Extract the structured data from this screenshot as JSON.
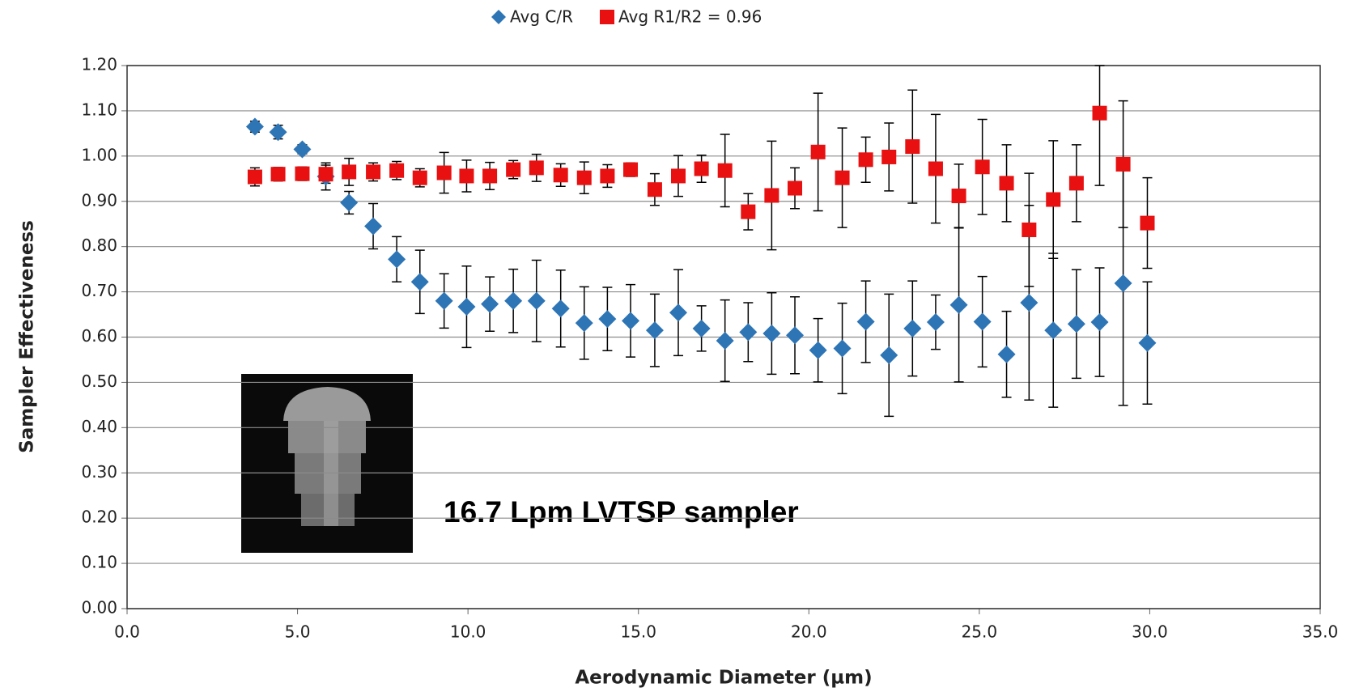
{
  "chart_data": {
    "type": "scatter",
    "x_label": "Aerodynamic Diameter (µm)",
    "y_label": "Sampler Effectiveness",
    "annotation": "16.7 Lpm LVTSP sampler",
    "xlim": [
      0,
      35
    ],
    "ylim": [
      0,
      1.2
    ],
    "xticks": [
      {
        "value": 0,
        "label": "0.0"
      },
      {
        "value": 5,
        "label": "5.0"
      },
      {
        "value": 10,
        "label": "10.0"
      },
      {
        "value": 15,
        "label": "15.0"
      },
      {
        "value": 20,
        "label": "20.0"
      },
      {
        "value": 25,
        "label": "25.0"
      },
      {
        "value": 30,
        "label": "30.0"
      },
      {
        "value": 35,
        "label": "35.0"
      }
    ],
    "yticks": [
      {
        "value": 0,
        "label": "0.00"
      },
      {
        "value": 0.1,
        "label": "0.10"
      },
      {
        "value": 0.2,
        "label": "0.20"
      },
      {
        "value": 0.3,
        "label": "0.30"
      },
      {
        "value": 0.4,
        "label": "0.40"
      },
      {
        "value": 0.5,
        "label": "0.50"
      },
      {
        "value": 0.6,
        "label": "0.60"
      },
      {
        "value": 0.7,
        "label": "0.70"
      },
      {
        "value": 0.8,
        "label": "0.80"
      },
      {
        "value": 0.9,
        "label": "0.90"
      },
      {
        "value": 1.0,
        "label": "1.00"
      },
      {
        "value": 1.1,
        "label": "1.10"
      },
      {
        "value": 1.2,
        "label": "1.20"
      }
    ],
    "grid": true,
    "legend": "top",
    "x": [
      3.75,
      4.43,
      5.14,
      5.83,
      6.51,
      7.22,
      7.91,
      8.59,
      9.3,
      9.96,
      10.64,
      11.33,
      12.01,
      12.72,
      13.41,
      14.09,
      14.77,
      15.48,
      16.17,
      16.85,
      17.54,
      18.22,
      18.91,
      19.59,
      20.27,
      20.98,
      21.67,
      22.35,
      23.04,
      23.72,
      24.4,
      25.09,
      25.8,
      26.46,
      27.17,
      27.85,
      28.53,
      29.22,
      29.93
    ],
    "series": [
      {
        "name": "Avg C/R",
        "color": "#2e75b6",
        "marker": "diamond",
        "values": [
          1.065,
          1.053,
          1.015,
          0.955,
          0.897,
          0.845,
          0.772,
          0.722,
          0.68,
          0.667,
          0.673,
          0.68,
          0.68,
          0.663,
          0.631,
          0.64,
          0.636,
          0.615,
          0.654,
          0.619,
          0.592,
          0.611,
          0.608,
          0.604,
          0.571,
          0.575,
          0.634,
          0.56,
          0.619,
          0.633,
          0.671,
          0.634,
          0.562,
          0.676,
          0.615,
          0.629,
          0.633,
          0.719,
          0.587
        ],
        "errors": [
          0.012,
          0.015,
          0.01,
          0.03,
          0.025,
          0.05,
          0.05,
          0.07,
          0.06,
          0.09,
          0.06,
          0.07,
          0.09,
          0.085,
          0.08,
          0.07,
          0.08,
          0.08,
          0.095,
          0.05,
          0.09,
          0.065,
          0.09,
          0.085,
          0.07,
          0.1,
          0.09,
          0.135,
          0.105,
          0.06,
          0.17,
          0.1,
          0.095,
          0.215,
          0.17,
          0.12,
          0.12,
          0.27,
          0.135
        ]
      },
      {
        "name": "Avg R1/R2 = 0.96",
        "color": "#e81010",
        "marker": "square",
        "values": [
          0.954,
          0.96,
          0.961,
          0.96,
          0.965,
          0.965,
          0.968,
          0.952,
          0.963,
          0.956,
          0.956,
          0.97,
          0.974,
          0.958,
          0.952,
          0.956,
          0.97,
          0.926,
          0.956,
          0.972,
          0.968,
          0.877,
          0.913,
          0.929,
          1.009,
          0.952,
          0.992,
          0.998,
          1.021,
          0.972,
          0.912,
          0.976,
          0.94,
          0.837,
          0.904,
          0.94,
          1.095,
          0.982,
          0.852
        ],
        "errors": [
          0.02,
          0.015,
          0.015,
          0.02,
          0.03,
          0.02,
          0.02,
          0.02,
          0.045,
          0.035,
          0.03,
          0.02,
          0.03,
          0.025,
          0.035,
          0.025,
          0.015,
          0.035,
          0.045,
          0.03,
          0.08,
          0.04,
          0.12,
          0.045,
          0.13,
          0.11,
          0.05,
          0.075,
          0.125,
          0.12,
          0.07,
          0.105,
          0.085,
          0.125,
          0.13,
          0.085,
          0.16,
          0.14,
          0.1
        ]
      }
    ]
  }
}
